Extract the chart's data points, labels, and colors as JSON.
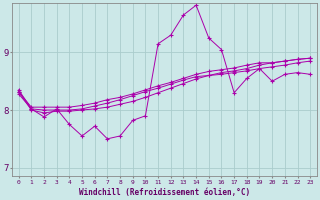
{
  "background_color": "#cce8e8",
  "grid_color": "#aacccc",
  "line_color": "#aa00aa",
  "xlabel": "Windchill (Refroidissement éolien,°C)",
  "xlim": [
    -0.5,
    23.5
  ],
  "ylim": [
    6.85,
    9.85
  ],
  "yticks": [
    7,
    8,
    9
  ],
  "xticks": [
    0,
    1,
    2,
    3,
    4,
    5,
    6,
    7,
    8,
    9,
    10,
    11,
    12,
    13,
    14,
    15,
    16,
    17,
    18,
    19,
    20,
    21,
    22,
    23
  ],
  "series1_x": [
    0,
    1,
    2,
    3,
    4,
    5,
    6,
    7,
    8,
    9,
    10,
    11,
    12,
    13,
    14,
    15,
    16,
    17,
    18,
    19,
    20,
    21,
    22,
    23
  ],
  "series1_y": [
    8.35,
    8.02,
    7.88,
    8.02,
    7.75,
    7.55,
    7.72,
    7.5,
    7.55,
    7.82,
    7.9,
    9.15,
    9.3,
    9.65,
    9.82,
    9.25,
    9.05,
    8.3,
    8.55,
    8.72,
    8.5,
    8.62,
    8.65,
    8.62
  ],
  "series2_x": [
    0,
    1,
    2,
    3,
    4,
    5,
    6,
    7,
    8,
    9,
    10,
    11,
    12,
    13,
    14,
    15,
    16,
    17,
    18,
    19,
    20,
    21,
    22,
    23
  ],
  "series2_y": [
    8.32,
    8.05,
    8.05,
    8.05,
    8.05,
    8.08,
    8.12,
    8.18,
    8.22,
    8.28,
    8.35,
    8.42,
    8.48,
    8.55,
    8.62,
    8.67,
    8.7,
    8.73,
    8.78,
    8.82,
    8.82,
    8.85,
    8.88,
    8.9
  ],
  "series3_x": [
    0,
    1,
    2,
    3,
    4,
    5,
    6,
    7,
    8,
    9,
    10,
    11,
    12,
    13,
    14,
    15,
    16,
    17,
    18,
    19,
    20,
    21,
    22,
    23
  ],
  "series3_y": [
    8.28,
    8.02,
    8.0,
    8.0,
    8.0,
    8.02,
    8.07,
    8.12,
    8.18,
    8.25,
    8.32,
    8.38,
    8.45,
    8.52,
    8.58,
    8.6,
    8.62,
    8.65,
    8.68,
    8.72,
    8.75,
    8.78,
    8.82,
    8.85
  ],
  "series4_x": [
    0,
    1,
    2,
    3,
    4,
    5,
    6,
    7,
    8,
    9,
    10,
    11,
    12,
    13,
    14,
    15,
    16,
    17,
    18,
    19,
    20,
    21,
    22,
    23
  ],
  "series4_y": [
    8.32,
    8.0,
    7.95,
    7.98,
    7.98,
    8.0,
    8.02,
    8.05,
    8.1,
    8.15,
    8.22,
    8.3,
    8.38,
    8.46,
    8.54,
    8.6,
    8.65,
    8.68,
    8.72,
    8.78,
    8.82,
    8.85,
    8.88,
    8.9
  ]
}
